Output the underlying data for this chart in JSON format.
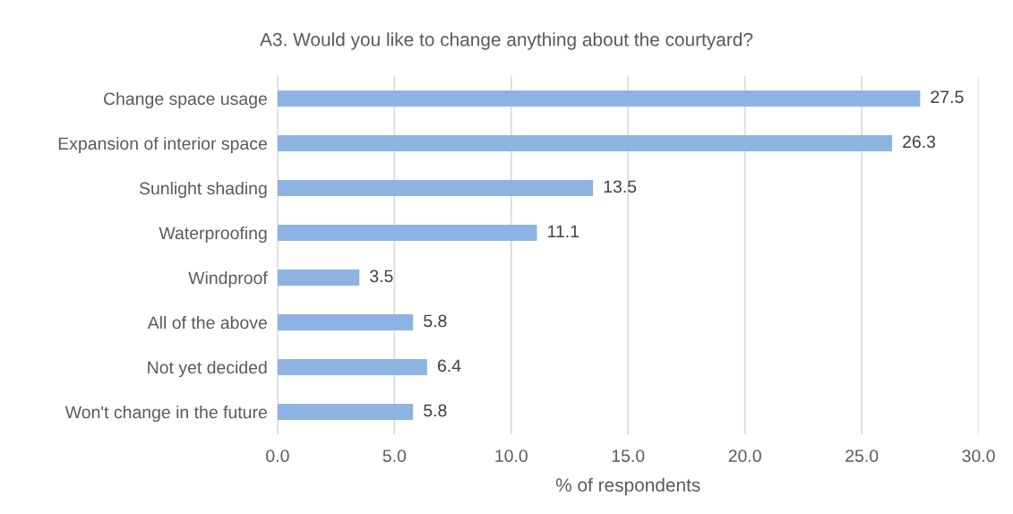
{
  "chart_data": {
    "type": "bar",
    "orientation": "horizontal",
    "title": "A3. Would you like to change anything about the courtyard?",
    "xlabel": "% of respondents",
    "categories": [
      "Change space usage",
      "Expansion of interior space",
      "Sunlight shading",
      "Waterproofing",
      "Windproof",
      "All of the above",
      "Not yet decided",
      "Won't change in the future"
    ],
    "values": [
      27.5,
      26.3,
      13.5,
      11.1,
      3.5,
      5.8,
      6.4,
      5.8
    ],
    "color": "#8db3e2",
    "data_labels": true,
    "grid": "x",
    "legend": false,
    "xlim": [
      0,
      30
    ],
    "xticks": [
      {
        "value": 0,
        "label": "0.0"
      },
      {
        "value": 5,
        "label": "5.0"
      },
      {
        "value": 10,
        "label": "10.0"
      },
      {
        "value": 15,
        "label": "15.0"
      },
      {
        "value": 20,
        "label": "20.0"
      },
      {
        "value": 25,
        "label": "25.0"
      },
      {
        "value": 30,
        "label": "30.0"
      }
    ]
  }
}
